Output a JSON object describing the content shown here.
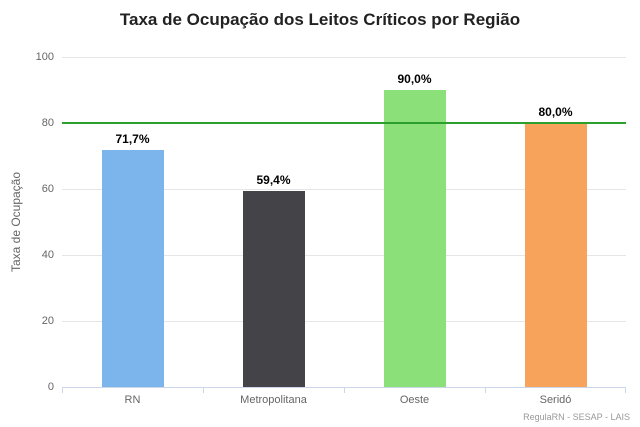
{
  "credits": "RegulaRN - SESAP - LAIS",
  "chart_data": {
    "type": "bar",
    "title": "Taxa de Ocupação dos Leitos Críticos por Região",
    "categories": [
      "RN",
      "Metropolitana",
      "Oeste",
      "Seridó"
    ],
    "values": [
      71.7,
      59.4,
      90.0,
      80.0
    ],
    "value_labels": [
      "71,7%",
      "59,4%",
      "90,0%",
      "80,0%"
    ],
    "colors": [
      "#7cb5ec",
      "#434348",
      "#8ce07a",
      "#f7a35c"
    ],
    "xlabel": "",
    "ylabel": "Taxa de Ocupação",
    "ylim": [
      0,
      100
    ],
    "yticks": [
      0,
      20,
      40,
      60,
      80,
      100
    ],
    "grid": true,
    "legend": "none",
    "plotline": {
      "value": 80,
      "color": "#2ca02c"
    }
  }
}
